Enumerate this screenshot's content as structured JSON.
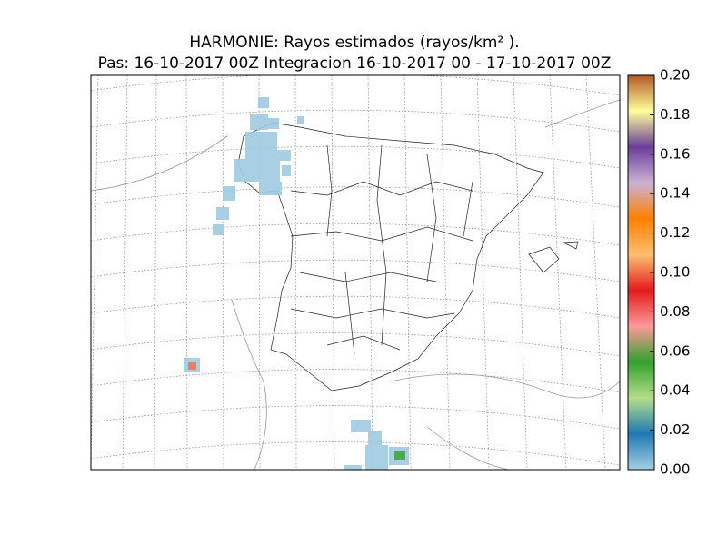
{
  "title": "HARMONIE: Rayos estimados  (rayos/km² ).",
  "subtitle": "Pas: 16-10-2017 00Z Integracion 16-10-2017 00 - 17-10-2017 00Z",
  "colorbar": {
    "lim": [
      0,
      0.2
    ],
    "colors": [
      "#a6cee3",
      "#1f78b4",
      "#b2df8a",
      "#33a02c",
      "#fb9a99",
      "#e31a1c",
      "#fdbf6f",
      "#ff7f00",
      "#cab2d6",
      "#6a3d9a",
      "#ffff99",
      "#b15928"
    ],
    "ticks": [
      {
        "value": 0,
        "label": "0.00"
      },
      {
        "value": 0.02,
        "label": "0.02"
      },
      {
        "value": 0.04,
        "label": "0.04"
      },
      {
        "value": 0.06,
        "label": "0.06"
      },
      {
        "value": 0.08,
        "label": "0.08"
      },
      {
        "value": 0.1,
        "label": "0.10"
      },
      {
        "value": 0.12,
        "label": "0.12"
      },
      {
        "value": 0.14,
        "label": "0.14"
      },
      {
        "value": 0.16,
        "label": "0.16"
      },
      {
        "value": 0.18,
        "label": "0.18"
      },
      {
        "value": 0.2,
        "label": "0.20"
      }
    ]
  }
}
